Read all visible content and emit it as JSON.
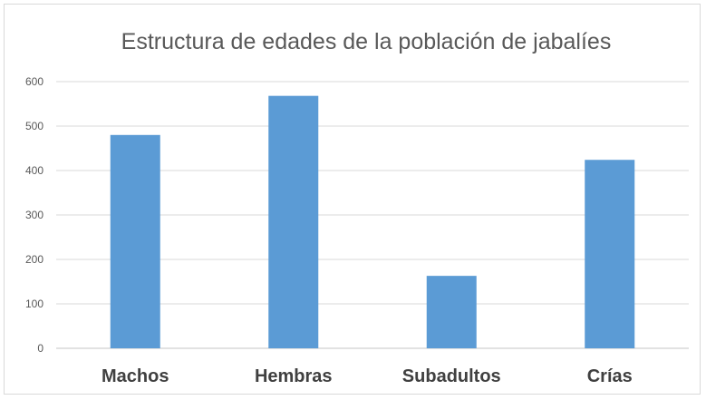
{
  "chart_data": {
    "type": "bar",
    "title": "Estructura de edades de la población de jabalíes",
    "categories": [
      "Machos",
      "Hembras",
      "Subadultos",
      "Crías"
    ],
    "values": [
      480,
      568,
      163,
      424
    ],
    "y_ticks": [
      "0",
      "100",
      "200",
      "300",
      "400",
      "500",
      "600"
    ],
    "ylim": [
      0,
      600
    ],
    "grid": true,
    "legend": "none",
    "bar_color": "#5b9bd5",
    "grid_color": "#d9d9d9"
  }
}
